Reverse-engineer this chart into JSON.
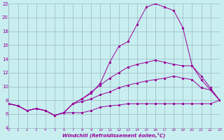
{
  "xlabel": "Windchill (Refroidissement éolien,°C)",
  "bg_color": "#c8eef0",
  "grid_color": "#9ab8c0",
  "line_color": "#990099",
  "xmin": 0,
  "xmax": 23,
  "ymin": 4,
  "ymax": 22,
  "yticks": [
    4,
    6,
    8,
    10,
    12,
    14,
    16,
    18,
    20,
    22
  ],
  "xticks": [
    0,
    1,
    2,
    3,
    4,
    5,
    6,
    7,
    8,
    9,
    10,
    11,
    12,
    13,
    14,
    15,
    16,
    17,
    18,
    19,
    20,
    21,
    22,
    23
  ],
  "series": [
    {
      "x": [
        0,
        1,
        2,
        3,
        4,
        5,
        6,
        7,
        8,
        9,
        10,
        11,
        12,
        13,
        14,
        15,
        16,
        17,
        18,
        19,
        20,
        21,
        22,
        23
      ],
      "y": [
        7.5,
        7.2,
        6.5,
        6.8,
        6.5,
        5.8,
        6.2,
        6.2,
        6.2,
        6.5,
        7.0,
        7.2,
        7.3,
        7.5,
        7.5,
        7.5,
        7.5,
        7.5,
        7.5,
        7.5,
        7.5,
        7.5,
        7.5,
        8.0
      ]
    },
    {
      "x": [
        0,
        1,
        2,
        3,
        4,
        5,
        6,
        7,
        8,
        9,
        10,
        11,
        12,
        13,
        14,
        15,
        16,
        17,
        18,
        19,
        20,
        21,
        22,
        23
      ],
      "y": [
        7.5,
        7.2,
        6.5,
        6.8,
        6.5,
        5.8,
        6.2,
        7.5,
        7.8,
        8.2,
        8.8,
        9.2,
        9.8,
        10.2,
        10.5,
        10.8,
        11.0,
        11.2,
        11.5,
        11.2,
        11.0,
        9.8,
        9.5,
        8.0
      ]
    },
    {
      "x": [
        0,
        1,
        2,
        3,
        4,
        5,
        6,
        7,
        8,
        9,
        10,
        11,
        12,
        13,
        14,
        15,
        16,
        17,
        18,
        19,
        20,
        21,
        22,
        23
      ],
      "y": [
        7.5,
        7.2,
        6.5,
        6.8,
        6.5,
        5.8,
        6.2,
        7.5,
        8.2,
        9.2,
        10.2,
        11.2,
        12.0,
        12.8,
        13.2,
        13.5,
        13.8,
        13.5,
        13.2,
        13.0,
        13.0,
        11.5,
        9.8,
        8.0
      ]
    },
    {
      "x": [
        0,
        1,
        2,
        3,
        4,
        5,
        6,
        7,
        8,
        9,
        10,
        11,
        12,
        13,
        14,
        15,
        16,
        17,
        18,
        19,
        20,
        21,
        22,
        23
      ],
      "y": [
        7.5,
        7.2,
        6.5,
        6.8,
        6.5,
        5.8,
        6.2,
        7.5,
        8.2,
        9.0,
        10.5,
        13.5,
        15.8,
        16.5,
        19.0,
        21.5,
        22.0,
        21.5,
        21.0,
        18.5,
        13.0,
        11.0,
        9.5,
        8.0
      ]
    }
  ]
}
